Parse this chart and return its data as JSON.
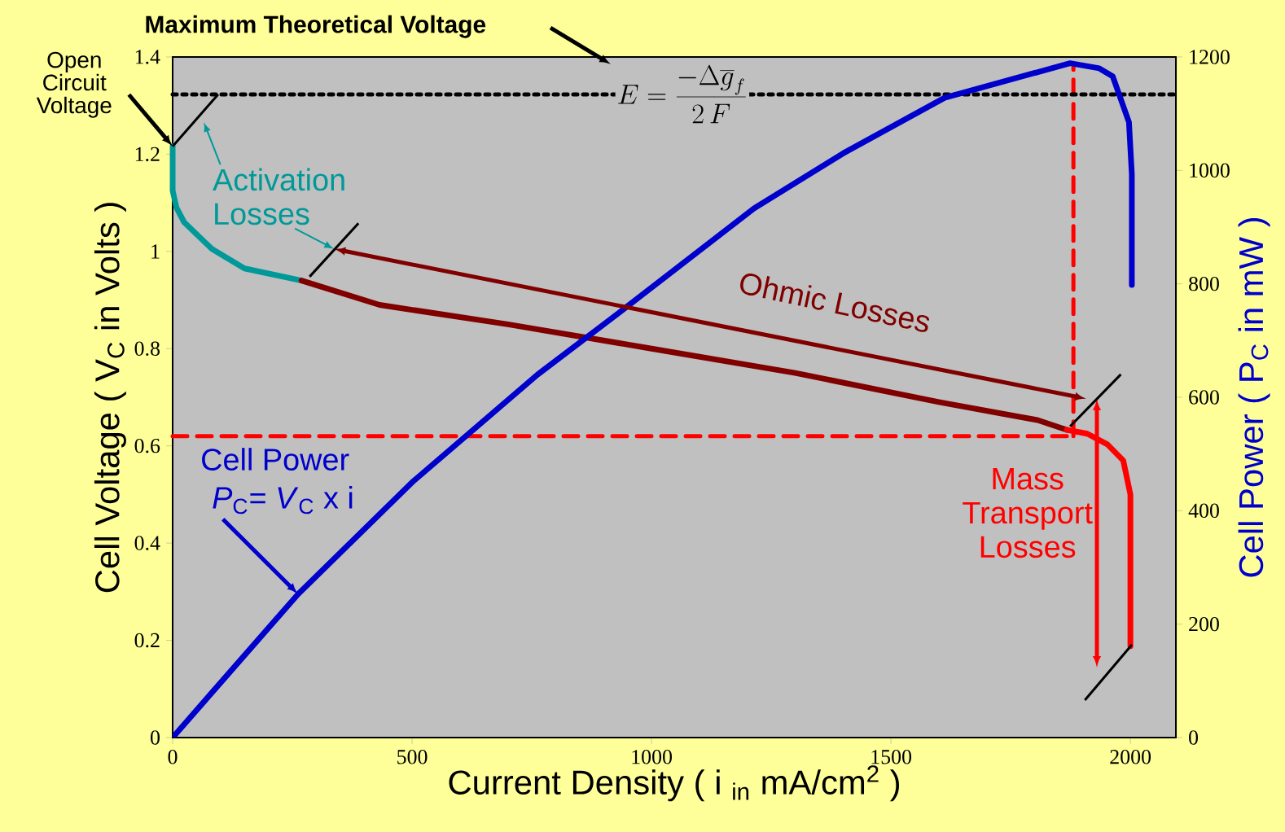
{
  "chart_data": {
    "type": "line",
    "xlabel": "Current Density  ( i $_{in}$ mA/cm$^{2}$ )",
    "ylabel": "Cell Voltage ( V$_{C}$ in Volts )",
    "y2label": "Cell Power  ( P$_{C}$ in mW )",
    "xlim": [
      0,
      2095
    ],
    "xticks": [
      0,
      500,
      1000,
      1500,
      2000
    ],
    "ylim": [
      0,
      1.4
    ],
    "yticks": [
      0,
      0.2,
      0.4,
      0.6,
      0.8,
      1,
      1.2,
      1.4
    ],
    "y2lim": [
      0,
      1200
    ],
    "y2ticks": [
      0,
      200,
      400,
      600,
      800,
      1000,
      1200
    ],
    "marker": "none",
    "line_style": "solid",
    "series": [
      {
        "color": "#009999",
        "x": [
          0,
          0,
          8,
          24,
          82,
          150,
          269
        ],
        "values": [
          1.216,
          1.125,
          1.09,
          1.06,
          1.005,
          0.965,
          0.94
        ]
      },
      {
        "color": "#800000",
        "x": [
          269,
          432,
          700,
          1000,
          1300,
          1600,
          1806,
          1867
        ],
        "values": [
          0.94,
          0.89,
          0.85,
          0.8,
          0.75,
          0.69,
          0.653,
          0.633
        ]
      },
      {
        "color": "#ff0000",
        "x": [
          1867,
          1910,
          1952,
          1985,
          2000,
          2000
        ],
        "values": [
          0.633,
          0.625,
          0.603,
          0.57,
          0.5,
          0.188
        ]
      },
      {
        "color": "#0000cc",
        "axis": "y2",
        "x": [
          0,
          262,
          500,
          762,
          932,
          1214,
          1400,
          1612,
          1874,
          1935,
          1963,
          1997,
          2003,
          2003
        ],
        "values": [
          0,
          253,
          450,
          640,
          749,
          933,
          1030,
          1128,
          1189,
          1180,
          1166,
          1085,
          993,
          798
        ]
      },
      {
        "color": "#ff0000",
        "line_style": "dashed",
        "x": [
          0,
          1881
        ],
        "values": [
          0.62,
          0.62
        ]
      },
      {
        "color": "#ff0000",
        "line_style": "dashed",
        "x": [
          1881,
          1881
        ],
        "values": [
          0.62,
          1.385
        ]
      }
    ],
    "ref_lines": [
      {
        "axis": "y",
        "value": 1.323,
        "label": "Maximum Theoretical Voltage",
        "color": "#000000",
        "line_style": "dotted"
      }
    ],
    "annotations": [
      {
        "text": "Open Circuit Voltage",
        "x": 0,
        "y": 1.216
      },
      "Activation Losses",
      "Ohmic Losses",
      "Mass Transport Losses",
      "Cell Power",
      "*P*$_{C}$= *V*$_{C}$ x i",
      "E=\\frac{-\\Delta\\overline{g}_{f}}{2\\,F}"
    ]
  }
}
